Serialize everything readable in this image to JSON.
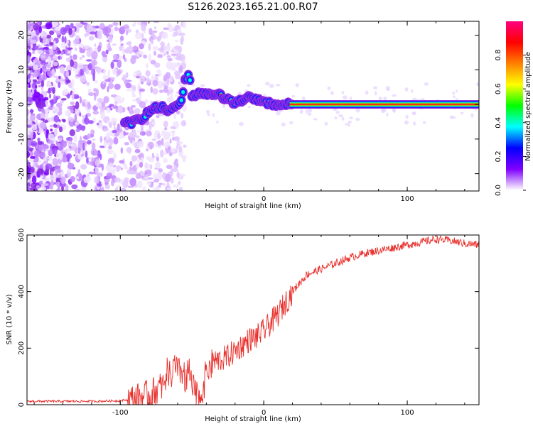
{
  "figure_title": "S126.2023.165.21.00.R07",
  "chart_data": [
    {
      "type": "heatmap",
      "title": "S126.2023.165.21.00.R07",
      "xlabel": "Height of straight line (km)",
      "ylabel": "Frequency (Hz)",
      "xlim": [
        -165,
        150
      ],
      "ylim": [
        -25,
        24
      ],
      "x_ticks": [
        -100,
        0,
        100
      ],
      "y_ticks": [
        -20,
        -10,
        0,
        10,
        20
      ],
      "ridge": {
        "x": [
          -95,
          -90,
          -85,
          -80,
          -75,
          -70,
          -65,
          -60,
          -57,
          -55,
          -52,
          -50,
          -45,
          -40,
          -35,
          -30,
          -25,
          -20,
          -15,
          -10,
          -5,
          0,
          10,
          20,
          50,
          100,
          150
        ],
        "freq": [
          -5.5,
          -5,
          -4,
          -2,
          -1,
          -1,
          -2,
          0,
          1,
          7,
          9,
          2,
          3.5,
          3,
          3,
          2.5,
          1.5,
          0.5,
          1,
          2,
          1.5,
          0.5,
          0,
          0,
          0,
          0,
          0
        ]
      },
      "colorbar": {
        "label": "Normalized spectral amplitude",
        "range": [
          0,
          1
        ],
        "ticks": [
          "0.0",
          "0.2",
          "0.4",
          "0.6",
          "0.8"
        ],
        "colors": [
          "#ffffff",
          "#8000ff",
          "#0000ff",
          "#00ffff",
          "#00ff00",
          "#ffff00",
          "#ff8000",
          "#ff0000",
          "#ff0080"
        ]
      }
    },
    {
      "type": "line",
      "xlabel": "Height of straight line (km)",
      "ylabel": "SNR (10 * v/v)",
      "xlim": [
        -165,
        150
      ],
      "ylim": [
        0,
        600
      ],
      "x_ticks": [
        -100,
        0,
        100
      ],
      "y_ticks": [
        0,
        200,
        400,
        600
      ],
      "series": [
        {
          "color": "#e8302c",
          "x": [
            -165,
            -140,
            -120,
            -100,
            -90,
            -80,
            -75,
            -70,
            -67,
            -65,
            -62,
            -60,
            -57,
            -55,
            -52,
            -50,
            -45,
            -42,
            -40,
            -35,
            -30,
            -25,
            -20,
            -15,
            -10,
            -5,
            0,
            5,
            10,
            15,
            20,
            25,
            30,
            40,
            50,
            60,
            70,
            80,
            90,
            100,
            110,
            120,
            130,
            140,
            150
          ],
          "y": [
            12,
            12,
            12,
            14,
            20,
            35,
            50,
            70,
            130,
            90,
            140,
            110,
            120,
            90,
            110,
            60,
            20,
            60,
            120,
            150,
            160,
            170,
            190,
            210,
            230,
            240,
            260,
            290,
            320,
            360,
            400,
            430,
            460,
            480,
            500,
            520,
            535,
            545,
            555,
            565,
            575,
            585,
            580,
            570,
            565
          ]
        }
      ]
    }
  ]
}
